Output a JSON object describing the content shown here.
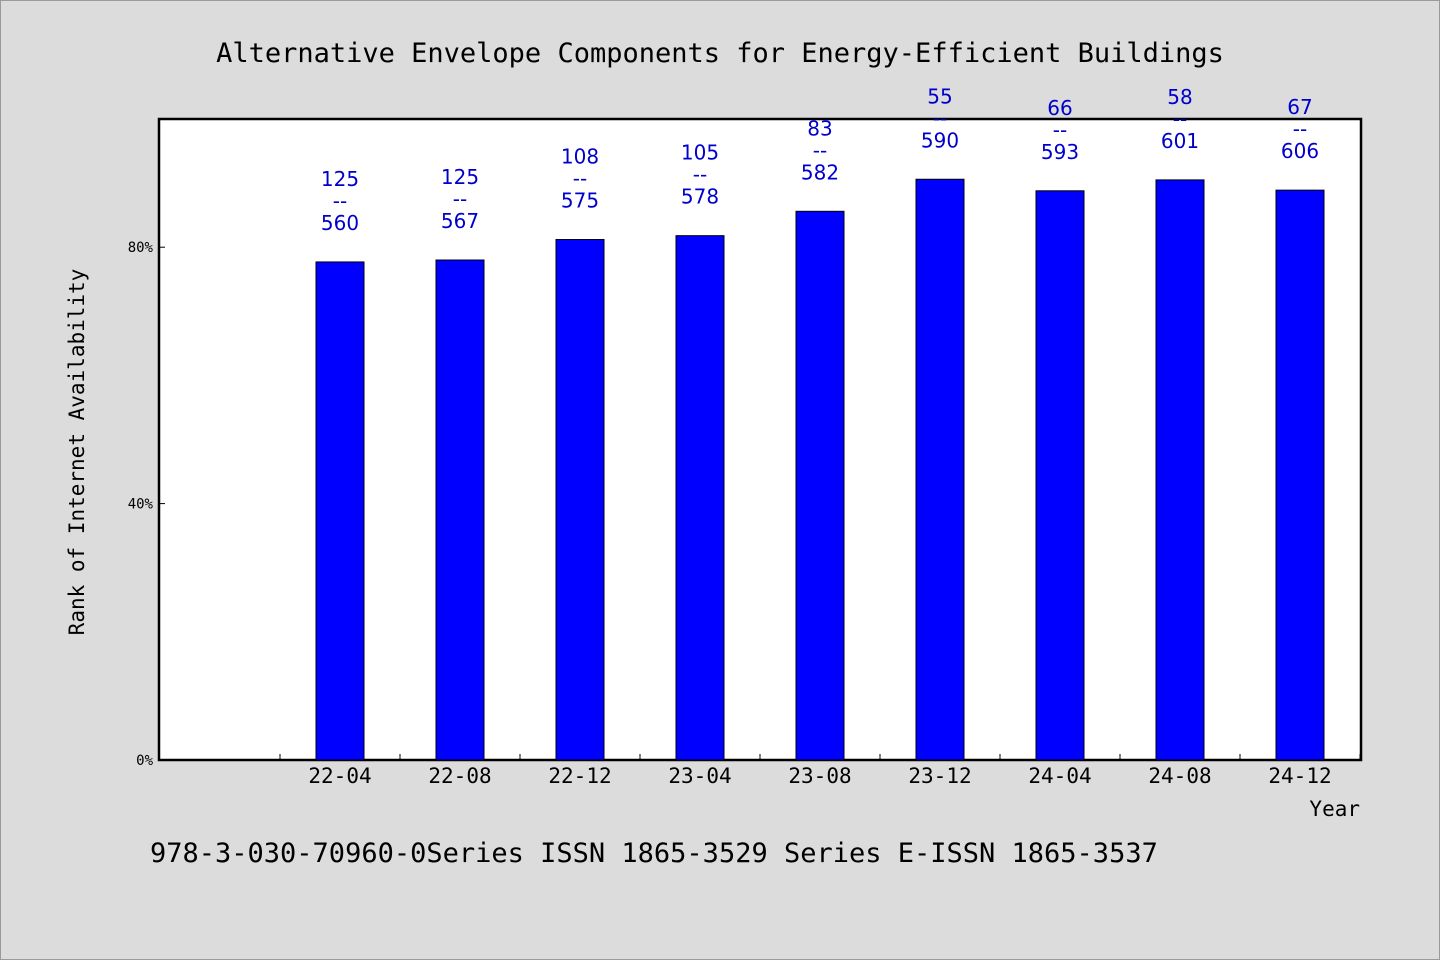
{
  "chart_data": {
    "type": "bar",
    "title": "Alternative Envelope Components for Energy-Efficient Buildings",
    "xlabel": "Year",
    "ylabel": "Rank of Internet Availability",
    "categories": [
      "22-04",
      "22-08",
      "22-12",
      "23-04",
      "23-08",
      "23-12",
      "24-04",
      "24-08",
      "24-12"
    ],
    "values": [
      77.7,
      78.0,
      81.2,
      81.8,
      85.6,
      90.6,
      88.8,
      90.5,
      88.9
    ],
    "data_labels": [
      [
        "125",
        "--",
        "560"
      ],
      [
        "125",
        "--",
        "567"
      ],
      [
        "108",
        "--",
        "575"
      ],
      [
        "105",
        "--",
        "578"
      ],
      [
        "83",
        "--",
        "582"
      ],
      [
        "55",
        "--",
        "590"
      ],
      [
        "66",
        "--",
        "593"
      ],
      [
        "58",
        "--",
        "601"
      ],
      [
        "67",
        "--",
        "606"
      ]
    ],
    "ylim": [
      0,
      100
    ],
    "yticks": [
      0,
      40,
      80
    ],
    "ytick_labels": [
      "0%",
      "40%",
      "80%"
    ],
    "grid": false,
    "bar_color": "#0000ff",
    "label_color": "#0000cc"
  },
  "footer": {
    "text": "978-3-030-70960-0Series ISSN 1865-3529 Series E-ISSN 1865-3537"
  }
}
